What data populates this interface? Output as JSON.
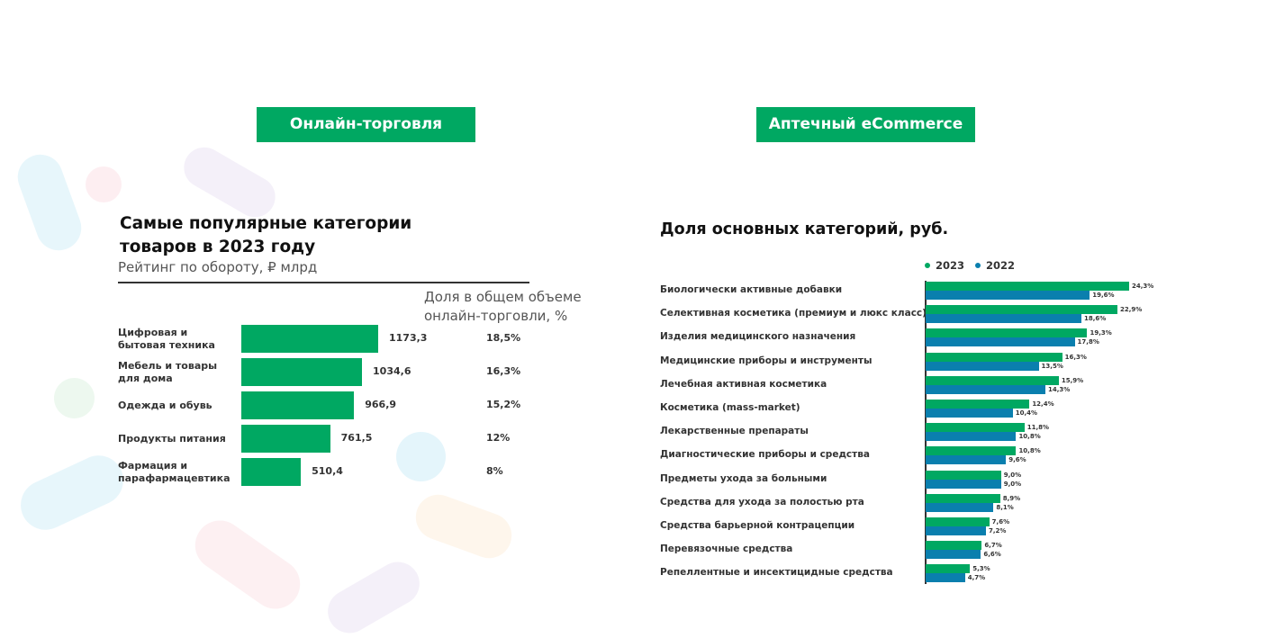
{
  "chart_data": [
    {
      "type": "bar",
      "section": "Онлайн-торговля",
      "title": "Самые популярные категории товаров в 2023 году",
      "subtitle": "Рейтинг по обороту, ₽ млрд",
      "column_header": "Доля в общем объеме онлайн-торговли, %",
      "categories": [
        "Цифровая и бытовая техника",
        "Мебель и товары для дома",
        "Одежда и обувь",
        "Продукты питания",
        "Фармация и парафармацевтика"
      ],
      "values": [
        1173.3,
        1034.6,
        966.9,
        761.5,
        510.4
      ],
      "value_labels": [
        "1173,3",
        "1034,6",
        "966,9",
        "761,5",
        "510,4"
      ],
      "shares": [
        "18,5%",
        "16,3%",
        "15,2%",
        "12%",
        "8%"
      ],
      "color": "#00a862"
    },
    {
      "type": "grouped-bar",
      "section": "Аптечный eCommerce",
      "title": "Доля основных категорий, руб.",
      "categories": [
        "Биологически активные добавки",
        "Селективная косметика (премиум и люкс класс)",
        "Изделия медицинского назначения",
        "Медицинские приборы и инструменты",
        "Лечебная активная косметика",
        "Косметика (mass-market)",
        "Лекарственные препараты",
        "Диагностические приборы и средства",
        "Предметы ухода за больными",
        "Средства для ухода за полостью рта",
        "Средства барьерной контрацепции",
        "Перевязочные средства",
        "Репеллентные и инсектицидные средства"
      ],
      "series": [
        {
          "name": "2023",
          "color": "#00a862",
          "values": [
            24.3,
            22.9,
            19.3,
            16.3,
            15.9,
            12.4,
            11.8,
            10.8,
            9.0,
            8.9,
            7.6,
            6.7,
            5.3
          ],
          "value_labels": [
            "24,3%",
            "22,9%",
            "19,3%",
            "16,3%",
            "15,9%",
            "12,4%",
            "11,8%",
            "10,8%",
            "9,0%",
            "8,9%",
            "7,6%",
            "6,7%",
            "5,3%"
          ]
        },
        {
          "name": "2022",
          "color": "#0a7fae",
          "values": [
            19.6,
            18.6,
            17.8,
            13.5,
            14.3,
            10.4,
            10.8,
            9.6,
            9.0,
            8.1,
            7.2,
            6.6,
            4.7
          ],
          "value_labels": [
            "19,6%",
            "18,6%",
            "17,8%",
            "13,5%",
            "14,3%",
            "10,4%",
            "10,8%",
            "9,6%",
            "9,0%",
            "8,1%",
            "7,2%",
            "6,6%",
            "4,7%"
          ]
        }
      ]
    }
  ]
}
